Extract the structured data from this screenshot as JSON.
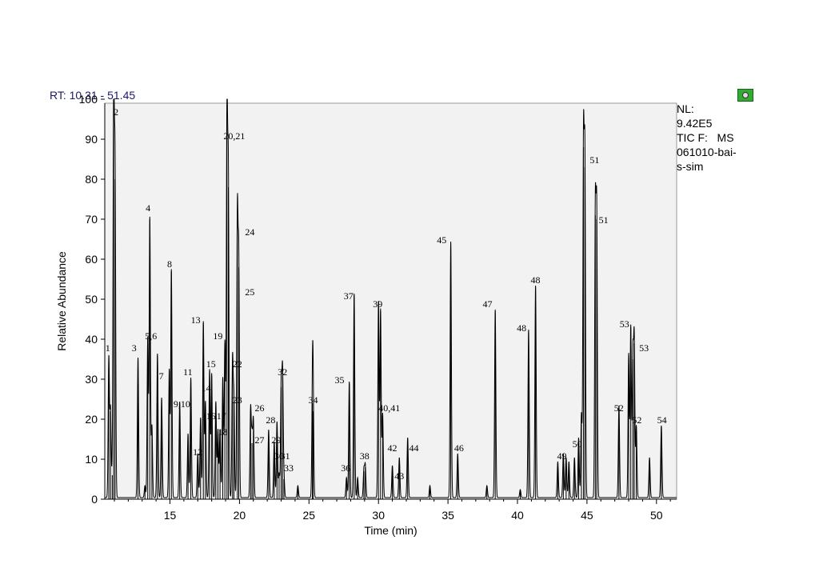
{
  "header": {
    "rt_range": "RT: 10.31 - 51.45",
    "nl_label": "NL:",
    "nl_value": "9.42E5",
    "tic_label": "TIC F:   MS",
    "file_line1": "061010-bai-",
    "file_line2": "s-sim"
  },
  "colors": {
    "trace": "#000000",
    "plot_bg": "#f2f2f2",
    "icon": "#33aa33"
  },
  "chart_data": {
    "type": "line",
    "title": "",
    "xlabel": "Time (min)",
    "ylabel": "Relative Abundance",
    "xlim": [
      10.31,
      51.45
    ],
    "ylim": [
      0,
      100
    ],
    "x_ticks": [
      15,
      20,
      25,
      30,
      35,
      40,
      45,
      50
    ],
    "y_ticks": [
      0,
      10,
      20,
      30,
      40,
      50,
      60,
      70,
      80,
      90,
      100
    ],
    "grid": false,
    "peaks": [
      {
        "x": 10.6,
        "y": 35
      },
      {
        "x": 10.72,
        "y": 22
      },
      {
        "x": 10.85,
        "y": 6
      },
      {
        "x": 10.95,
        "y": 100
      },
      {
        "x": 11.05,
        "y": 80
      },
      {
        "x": 12.7,
        "y": 35
      },
      {
        "x": 13.2,
        "y": 3
      },
      {
        "x": 13.55,
        "y": 70
      },
      {
        "x": 13.4,
        "y": 40
      },
      {
        "x": 13.7,
        "y": 18
      },
      {
        "x": 14.1,
        "y": 36
      },
      {
        "x": 14.4,
        "y": 25
      },
      {
        "x": 15.1,
        "y": 57
      },
      {
        "x": 14.95,
        "y": 32
      },
      {
        "x": 15.7,
        "y": 24
      },
      {
        "x": 16.3,
        "y": 16
      },
      {
        "x": 16.5,
        "y": 30
      },
      {
        "x": 17.0,
        "y": 11
      },
      {
        "x": 17.2,
        "y": 20
      },
      {
        "x": 17.4,
        "y": 44
      },
      {
        "x": 17.55,
        "y": 24
      },
      {
        "x": 17.85,
        "y": 32
      },
      {
        "x": 18.0,
        "y": 31
      },
      {
        "x": 18.3,
        "y": 24
      },
      {
        "x": 18.45,
        "y": 17
      },
      {
        "x": 18.6,
        "y": 17
      },
      {
        "x": 18.8,
        "y": 30
      },
      {
        "x": 18.95,
        "y": 39
      },
      {
        "x": 19.1,
        "y": 96
      },
      {
        "x": 19.2,
        "y": 78
      },
      {
        "x": 19.5,
        "y": 34
      },
      {
        "x": 19.6,
        "y": 24
      },
      {
        "x": 19.85,
        "y": 70
      },
      {
        "x": 19.95,
        "y": 58
      },
      {
        "x": 20.8,
        "y": 22
      },
      {
        "x": 20.9,
        "y": 14
      },
      {
        "x": 21.0,
        "y": 19
      },
      {
        "x": 22.1,
        "y": 17
      },
      {
        "x": 22.5,
        "y": 14
      },
      {
        "x": 22.7,
        "y": 19
      },
      {
        "x": 22.85,
        "y": 6
      },
      {
        "x": 23.0,
        "y": 28
      },
      {
        "x": 23.1,
        "y": 31
      },
      {
        "x": 23.2,
        "y": 5
      },
      {
        "x": 24.2,
        "y": 3
      },
      {
        "x": 25.25,
        "y": 24
      },
      {
        "x": 25.3,
        "y": 22
      },
      {
        "x": 27.7,
        "y": 5
      },
      {
        "x": 27.9,
        "y": 29
      },
      {
        "x": 28.25,
        "y": 51
      },
      {
        "x": 28.5,
        "y": 5
      },
      {
        "x": 28.95,
        "y": 7
      },
      {
        "x": 29.05,
        "y": 8
      },
      {
        "x": 30.0,
        "y": 49
      },
      {
        "x": 30.15,
        "y": 47
      },
      {
        "x": 30.3,
        "y": 21
      },
      {
        "x": 31.0,
        "y": 8
      },
      {
        "x": 31.5,
        "y": 10
      },
      {
        "x": 32.1,
        "y": 15
      },
      {
        "x": 33.7,
        "y": 3
      },
      {
        "x": 35.2,
        "y": 64
      },
      {
        "x": 35.7,
        "y": 11
      },
      {
        "x": 37.8,
        "y": 3
      },
      {
        "x": 38.4,
        "y": 47
      },
      {
        "x": 40.2,
        "y": 2
      },
      {
        "x": 40.8,
        "y": 42
      },
      {
        "x": 41.3,
        "y": 53
      },
      {
        "x": 42.9,
        "y": 9
      },
      {
        "x": 43.3,
        "y": 11
      },
      {
        "x": 43.5,
        "y": 10
      },
      {
        "x": 43.7,
        "y": 9
      },
      {
        "x": 44.1,
        "y": 10
      },
      {
        "x": 44.4,
        "y": 15
      },
      {
        "x": 44.6,
        "y": 21
      },
      {
        "x": 44.75,
        "y": 88
      },
      {
        "x": 44.85,
        "y": 83
      },
      {
        "x": 45.6,
        "y": 71
      },
      {
        "x": 45.7,
        "y": 70
      },
      {
        "x": 47.3,
        "y": 23
      },
      {
        "x": 48.0,
        "y": 36
      },
      {
        "x": 48.15,
        "y": 43
      },
      {
        "x": 48.3,
        "y": 35
      },
      {
        "x": 48.4,
        "y": 39
      },
      {
        "x": 48.55,
        "y": 18
      },
      {
        "x": 49.5,
        "y": 10
      },
      {
        "x": 50.35,
        "y": 18
      }
    ],
    "peak_labels": [
      {
        "text": "1",
        "x": 10.35,
        "y": 37
      },
      {
        "text": "2",
        "x": 10.95,
        "y": 96
      },
      {
        "text": "3",
        "x": 12.25,
        "y": 37
      },
      {
        "text": "4",
        "x": 13.25,
        "y": 72
      },
      {
        "text": "5,6",
        "x": 13.2,
        "y": 40
      },
      {
        "text": "7",
        "x": 14.2,
        "y": 30
      },
      {
        "text": "8",
        "x": 14.8,
        "y": 58
      },
      {
        "text": "9,10",
        "x": 15.25,
        "y": 23
      },
      {
        "text": "11",
        "x": 15.95,
        "y": 31
      },
      {
        "text": "12",
        "x": 16.65,
        "y": 11
      },
      {
        "text": "13",
        "x": 16.5,
        "y": 44
      },
      {
        "text": "14",
        "x": 17.25,
        "y": 27
      },
      {
        "text": "15",
        "x": 17.6,
        "y": 33
      },
      {
        "text": "16",
        "x": 17.6,
        "y": 20
      },
      {
        "text": "17",
        "x": 18.35,
        "y": 20
      },
      {
        "text": "18",
        "x": 18.45,
        "y": 16
      },
      {
        "text": "19",
        "x": 18.1,
        "y": 40
      },
      {
        "text": "20,21",
        "x": 18.85,
        "y": 90
      },
      {
        "text": "22",
        "x": 19.5,
        "y": 33
      },
      {
        "text": "23",
        "x": 19.5,
        "y": 24
      },
      {
        "text": "24",
        "x": 20.4,
        "y": 66
      },
      {
        "text": "25",
        "x": 20.4,
        "y": 51
      },
      {
        "text": "26",
        "x": 21.1,
        "y": 22
      },
      {
        "text": "27",
        "x": 21.1,
        "y": 14
      },
      {
        "text": "28",
        "x": 21.9,
        "y": 19
      },
      {
        "text": "29",
        "x": 22.3,
        "y": 14
      },
      {
        "text": "30",
        "x": 22.5,
        "y": 10
      },
      {
        "text": "31",
        "x": 22.95,
        "y": 10
      },
      {
        "text": "32",
        "x": 22.75,
        "y": 31
      },
      {
        "text": "33",
        "x": 23.2,
        "y": 7
      },
      {
        "text": "34",
        "x": 24.95,
        "y": 24
      },
      {
        "text": "35",
        "x": 26.85,
        "y": 29
      },
      {
        "text": "36",
        "x": 27.3,
        "y": 7
      },
      {
        "text": "37",
        "x": 27.5,
        "y": 50
      },
      {
        "text": "38",
        "x": 28.65,
        "y": 10
      },
      {
        "text": "39",
        "x": 29.6,
        "y": 48
      },
      {
        "text": "40,41",
        "x": 30.0,
        "y": 22
      },
      {
        "text": "42",
        "x": 30.65,
        "y": 12
      },
      {
        "text": "43",
        "x": 31.15,
        "y": 5
      },
      {
        "text": "44",
        "x": 32.2,
        "y": 12
      },
      {
        "text": "45",
        "x": 34.2,
        "y": 64
      },
      {
        "text": "46",
        "x": 35.45,
        "y": 12
      },
      {
        "text": "47",
        "x": 37.5,
        "y": 48
      },
      {
        "text": "48",
        "x": 39.95,
        "y": 42
      },
      {
        "text": "48",
        "x": 40.95,
        "y": 54
      },
      {
        "text": "49",
        "x": 42.85,
        "y": 10
      },
      {
        "text": "50",
        "x": 43.95,
        "y": 13
      },
      {
        "text": "51",
        "x": 45.2,
        "y": 84
      },
      {
        "text": "51",
        "x": 45.85,
        "y": 69
      },
      {
        "text": "52",
        "x": 46.95,
        "y": 22
      },
      {
        "text": "52",
        "x": 48.25,
        "y": 19
      },
      {
        "text": "53",
        "x": 47.35,
        "y": 43
      },
      {
        "text": "53",
        "x": 48.75,
        "y": 37
      },
      {
        "text": "54",
        "x": 50.05,
        "y": 19
      }
    ]
  }
}
